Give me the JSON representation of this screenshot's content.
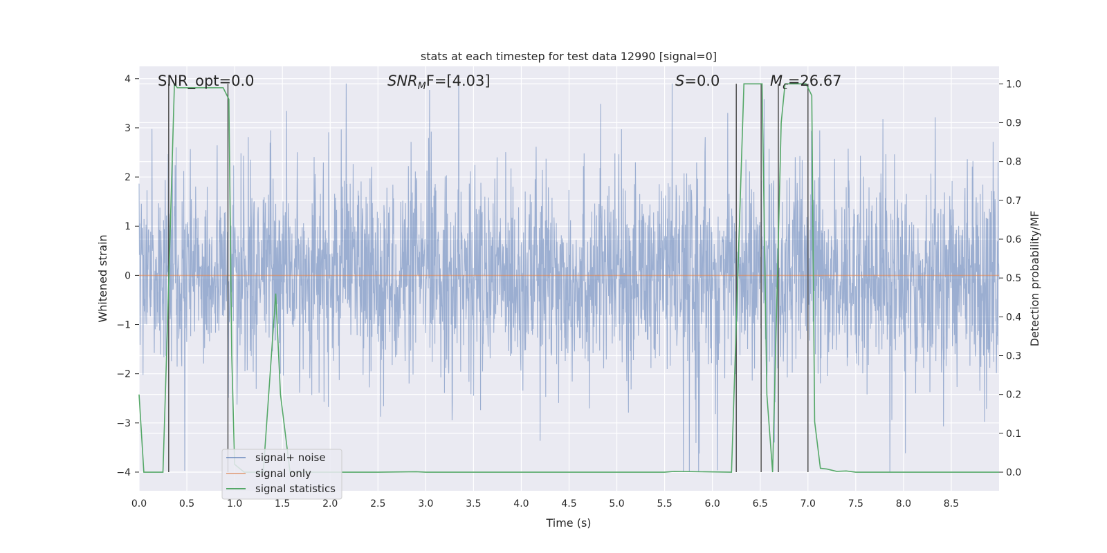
{
  "chart_data": {
    "type": "line",
    "title": "stats at each timestep for test data 12990 [signal=0]",
    "xlabel": "Time (s)",
    "ylabel_left": "Whitened strain",
    "ylabel_right": "Detection probability/MF",
    "xlim": [
      0.0,
      9.0
    ],
    "ylim_left": [
      -4.38,
      4.25
    ],
    "ylim_right": [
      -0.048,
      1.045
    ],
    "grid": true,
    "legend_position": "lower-left",
    "x_ticks": [
      "0.0",
      "0.5",
      "1.0",
      "1.5",
      "2.0",
      "2.5",
      "3.0",
      "3.5",
      "4.0",
      "4.5",
      "5.0",
      "5.5",
      "6.0",
      "6.5",
      "7.0",
      "7.5",
      "8.0",
      "8.5"
    ],
    "y_ticks_left": [
      "4",
      "3",
      "2",
      "1",
      "0",
      "−1",
      "−2",
      "−3",
      "−4"
    ],
    "y_ticks_right": [
      "1.0",
      "0.9",
      "0.8",
      "0.7",
      "0.6",
      "0.5",
      "0.4",
      "0.3",
      "0.2",
      "0.1",
      "0.0"
    ],
    "annotations": {
      "snr_opt": "SNR_opt=0.0",
      "snr_mf_base": "SNR",
      "snr_mf_sub": "M",
      "snr_mf_rest": "F=[4.03]",
      "s_italic": "S",
      "s_rest": "=0.0",
      "mc_base": "M",
      "mc_sub": "c",
      "mc_rest": "=26.67"
    },
    "series": [
      {
        "name": "signal+ noise",
        "color": "#4c72b0",
        "description": "whitened strain noise, amplitude envelope roughly between -2.8 and 3.2 with spikes",
        "approx_envelope": {
          "min": -4.0,
          "max": 3.9
        }
      },
      {
        "name": "signal only",
        "color": "#dd8452",
        "x": [
          0.0,
          9.0
        ],
        "y": [
          0.0,
          0.0
        ]
      },
      {
        "name": "signal statistics",
        "color": "#55a868",
        "axis": "right",
        "x": [
          0.0,
          0.05,
          0.25,
          0.3,
          0.37,
          0.4,
          0.88,
          0.94,
          0.97,
          1.0,
          1.1,
          1.3,
          1.43,
          1.48,
          1.58,
          2.5,
          2.9,
          3.0,
          5.5,
          5.6,
          6.2,
          6.33,
          6.38,
          6.52,
          6.57,
          6.63,
          6.72,
          6.76,
          6.98,
          7.04,
          7.07,
          7.13,
          7.2,
          7.3,
          7.4,
          7.5,
          9.0
        ],
        "y": [
          0.2,
          0.0,
          0.0,
          0.4,
          1.0,
          0.99,
          0.99,
          0.96,
          0.3,
          0.02,
          0.0,
          0.0,
          0.46,
          0.2,
          0.0,
          0.0,
          0.001,
          0.0,
          0.0,
          0.002,
          0.0,
          1.0,
          1.0,
          1.0,
          0.2,
          0.0,
          0.9,
          1.0,
          1.0,
          0.97,
          0.13,
          0.01,
          0.008,
          0.002,
          0.003,
          0.0,
          0.0
        ]
      }
    ],
    "vertical_markers": {
      "color": "#505050",
      "x": [
        0.31,
        0.93,
        6.25,
        6.51,
        6.69,
        7.0
      ]
    }
  }
}
